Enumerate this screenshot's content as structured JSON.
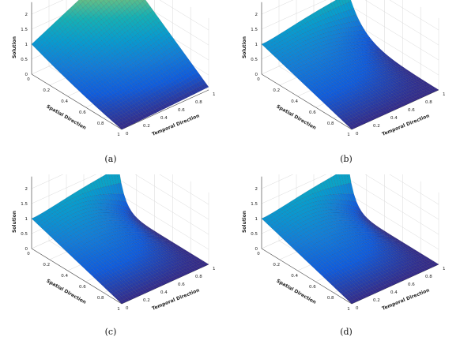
{
  "chart_data": [
    {
      "type": "surface",
      "caption": "(a)",
      "xlabel": "Spatial Direction",
      "ylabel": "Temporal Direction",
      "zlabel": "Solution",
      "x_ticks": [
        "0",
        "0.2",
        "0.4",
        "0.6",
        "0.8",
        "1"
      ],
      "y_ticks": [
        "0",
        "0.2",
        "0.4",
        "0.6",
        "0.8",
        "1"
      ],
      "z_ticks": [
        "0",
        "0.5",
        "1",
        "1.5",
        "2"
      ],
      "xlim": [
        0,
        1
      ],
      "ylim": [
        0,
        1
      ],
      "zlim": [
        0,
        2.4
      ],
      "grid": true,
      "colormap": "parula",
      "corner_values": {
        "x0_t0": 1.0,
        "x0_t1": 2.4,
        "x1_t0": 0.0,
        "x1_t1": 0.1
      },
      "peak": 2.4,
      "sharpness": 1.0
    },
    {
      "type": "surface",
      "caption": "(b)",
      "xlabel": "Spatial Direction",
      "ylabel": "Temporal Direction",
      "zlabel": "Solution",
      "x_ticks": [
        "0",
        "0.2",
        "0.4",
        "0.6",
        "0.8",
        "1"
      ],
      "y_ticks": [
        "0",
        "0.2",
        "0.4",
        "0.6",
        "0.8",
        "1"
      ],
      "z_ticks": [
        "0",
        "0.5",
        "1",
        "1.5",
        "2"
      ],
      "xlim": [
        0,
        1
      ],
      "ylim": [
        0,
        1
      ],
      "zlim": [
        0,
        2.4
      ],
      "grid": true,
      "colormap": "parula",
      "corner_values": {
        "x0_t0": 1.0,
        "x0_t1": 2.4,
        "x1_t0": 0.0,
        "x1_t1": 0.1
      },
      "peak": 2.4,
      "sharpness": 6.0
    },
    {
      "type": "surface",
      "caption": "(c)",
      "xlabel": "Spatial Direction",
      "ylabel": "Temporal Direction",
      "zlabel": "Solution",
      "x_ticks": [
        "0",
        "0.2",
        "0.4",
        "0.6",
        "0.8",
        "1"
      ],
      "y_ticks": [
        "0",
        "0.2",
        "0.4",
        "0.6",
        "0.8",
        "1"
      ],
      "z_ticks": [
        "0",
        "0.5",
        "1",
        "1.5",
        "2"
      ],
      "xlim": [
        0,
        1
      ],
      "ylim": [
        0,
        1
      ],
      "zlim": [
        0,
        2.4
      ],
      "grid": true,
      "colormap": "parula",
      "corner_values": {
        "x0_t0": 1.0,
        "x0_t1": 2.4,
        "x1_t0": 0.0,
        "x1_t1": 0.1
      },
      "peak": 2.4,
      "sharpness": 14.0
    },
    {
      "type": "surface",
      "caption": "(d)",
      "xlabel": "Spatial Direction",
      "ylabel": "Temporal Direction",
      "zlabel": "Solution",
      "x_ticks": [
        "0",
        "0.2",
        "0.4",
        "0.6",
        "0.8",
        "1"
      ],
      "y_ticks": [
        "0",
        "0.2",
        "0.4",
        "0.6",
        "0.8",
        "1"
      ],
      "z_ticks": [
        "0",
        "0.5",
        "1",
        "1.5",
        "2"
      ],
      "xlim": [
        0,
        1
      ],
      "ylim": [
        0,
        1
      ],
      "zlim": [
        0,
        2.4
      ],
      "grid": true,
      "colormap": "parula",
      "corner_values": {
        "x0_t0": 1.0,
        "x0_t1": 2.4,
        "x1_t0": 0.0,
        "x1_t1": 0.1
      },
      "peak": 2.4,
      "sharpness": 14.0
    }
  ]
}
